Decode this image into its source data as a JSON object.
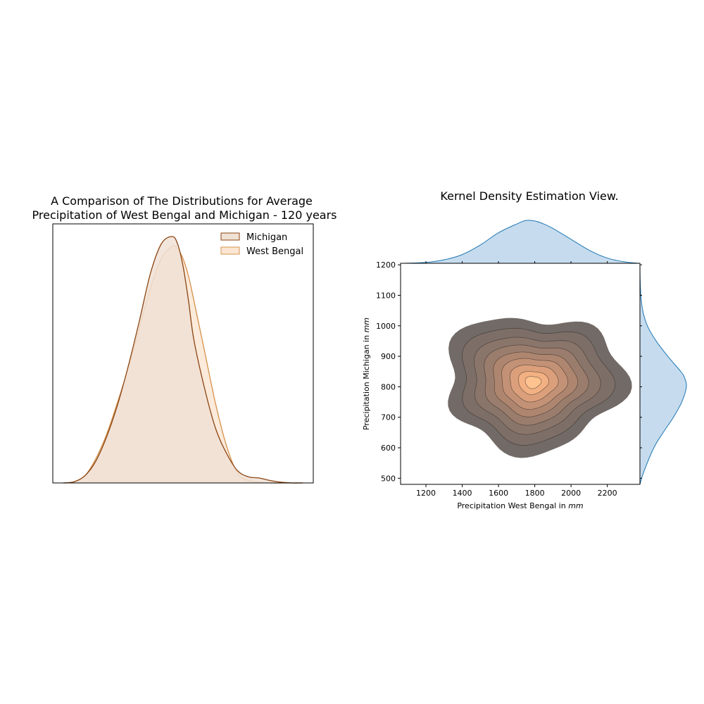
{
  "chart_data": [
    {
      "type": "area",
      "title_line1": "A Comparison of The Distributions for Average",
      "title_line2": "Precipitation of West Bengal and Michigan - 120 years",
      "axes_visible": false,
      "legend_placement": "top-right",
      "x": [
        -4.0,
        -3.6,
        -3.2,
        -2.8,
        -2.4,
        -2.0,
        -1.6,
        -1.2,
        -0.8,
        -0.4,
        0.0,
        0.2,
        0.4,
        0.6,
        0.8,
        1.2,
        1.6,
        2.0,
        2.4,
        2.8,
        3.2,
        3.6,
        4.0,
        4.4,
        4.8
      ],
      "xlim": [
        -4.0,
        4.8
      ],
      "ylim": [
        0,
        1.0
      ],
      "series": [
        {
          "name": "Michigan",
          "color": "#8b4513",
          "fill": "#f0e1d5",
          "values": [
            0.0,
            0.005,
            0.03,
            0.09,
            0.19,
            0.32,
            0.48,
            0.66,
            0.85,
            0.97,
            1.0,
            0.97,
            0.88,
            0.74,
            0.58,
            0.38,
            0.22,
            0.12,
            0.05,
            0.025,
            0.02,
            0.01,
            0.003,
            0.0,
            0.0
          ]
        },
        {
          "name": "West Bengal",
          "color": "#d4914b",
          "fill": "#fbe6d4",
          "values": [
            0.0,
            0.004,
            0.03,
            0.1,
            0.2,
            0.33,
            0.47,
            0.63,
            0.79,
            0.91,
            0.96,
            0.95,
            0.91,
            0.84,
            0.74,
            0.53,
            0.32,
            0.15,
            0.04,
            0.01,
            0.003,
            0.0,
            0.0,
            0.0,
            0.0
          ]
        }
      ]
    },
    {
      "type": "contour",
      "title": "Kernel Density Estimation View.",
      "xlabel_text": "Precipitation West Bengal in ",
      "xlabel_unit": "mm",
      "ylabel_text": "Precipitation Michigan in ",
      "ylabel_unit": "mm",
      "xlim": [
        1060,
        2380
      ],
      "ylim": [
        480,
        1205
      ],
      "xticks": [
        1200,
        1400,
        1600,
        1800,
        2000,
        2200
      ],
      "yticks": [
        500,
        600,
        700,
        800,
        900,
        1000,
        1100,
        1200
      ],
      "levels": [
        {
          "radius": 1.0,
          "fill": "#716a66"
        },
        {
          "radius": 0.84,
          "fill": "#7d6f68"
        },
        {
          "radius": 0.7,
          "fill": "#8a756a"
        },
        {
          "radius": 0.58,
          "fill": "#9b7d6d"
        },
        {
          "radius": 0.47,
          "fill": "#ae8670"
        },
        {
          "radius": 0.37,
          "fill": "#c39276"
        },
        {
          "radius": 0.27,
          "fill": "#dba07b"
        },
        {
          "radius": 0.17,
          "fill": "#f3b183"
        },
        {
          "radius": 0.09,
          "fill": "#ffc38f"
        }
      ],
      "center": {
        "x": 1790,
        "y": 815
      },
      "spread": {
        "x": 470,
        "y": 230
      },
      "marginal_color": "#1f77b4",
      "marginal_fill": "#c6dcee",
      "marginal_x": {
        "x": [
          1060,
          1200,
          1300,
          1400,
          1500,
          1600,
          1700,
          1750,
          1800,
          1850,
          1900,
          2000,
          2100,
          2200,
          2300,
          2380
        ],
        "density": [
          0.0,
          0.02,
          0.08,
          0.2,
          0.42,
          0.7,
          0.9,
          0.98,
          0.97,
          0.9,
          0.8,
          0.55,
          0.3,
          0.12,
          0.03,
          0.0
        ]
      },
      "marginal_y": {
        "y": [
          480,
          520,
          600,
          650,
          700,
          750,
          800,
          830,
          850,
          900,
          950,
          1000,
          1050,
          1100,
          1150,
          1205
        ],
        "density": [
          0.0,
          0.08,
          0.3,
          0.5,
          0.72,
          0.9,
          1.0,
          0.96,
          0.88,
          0.6,
          0.35,
          0.16,
          0.06,
          0.02,
          0.005,
          0.0
        ]
      }
    }
  ]
}
